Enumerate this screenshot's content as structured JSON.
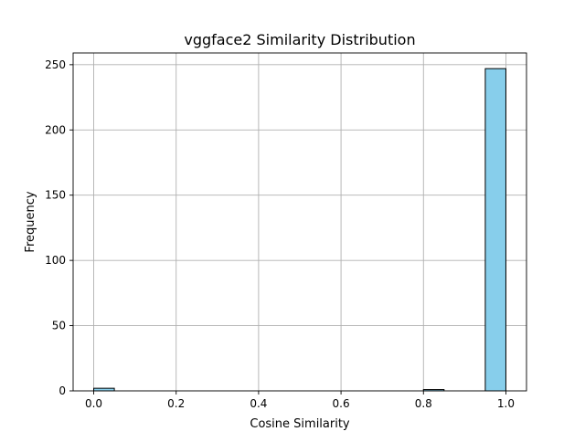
{
  "chart_data": {
    "type": "bar",
    "title": "vggface2 Similarity Distribution",
    "xlabel": "Cosine Similarity",
    "ylabel": "Frequency",
    "xlim": [
      -0.05,
      1.05
    ],
    "ylim": [
      0,
      259
    ],
    "grid": true,
    "bar_color": "#87ceeb",
    "edge_color": "#000000",
    "grid_color": "#b0b0b0",
    "bin_width": 0.05,
    "bins": [
      {
        "x0": 0.0,
        "x1": 0.05,
        "count": 2
      },
      {
        "x0": 0.05,
        "x1": 0.1,
        "count": 0
      },
      {
        "x0": 0.1,
        "x1": 0.15,
        "count": 0
      },
      {
        "x0": 0.15,
        "x1": 0.2,
        "count": 0
      },
      {
        "x0": 0.2,
        "x1": 0.25,
        "count": 0
      },
      {
        "x0": 0.25,
        "x1": 0.3,
        "count": 0
      },
      {
        "x0": 0.3,
        "x1": 0.35,
        "count": 0
      },
      {
        "x0": 0.35,
        "x1": 0.4,
        "count": 0
      },
      {
        "x0": 0.4,
        "x1": 0.45,
        "count": 0
      },
      {
        "x0": 0.45,
        "x1": 0.5,
        "count": 0
      },
      {
        "x0": 0.5,
        "x1": 0.55,
        "count": 0
      },
      {
        "x0": 0.55,
        "x1": 0.6,
        "count": 0
      },
      {
        "x0": 0.6,
        "x1": 0.65,
        "count": 0
      },
      {
        "x0": 0.65,
        "x1": 0.7,
        "count": 0
      },
      {
        "x0": 0.7,
        "x1": 0.75,
        "count": 0
      },
      {
        "x0": 0.75,
        "x1": 0.8,
        "count": 0
      },
      {
        "x0": 0.8,
        "x1": 0.85,
        "count": 1
      },
      {
        "x0": 0.85,
        "x1": 0.9,
        "count": 0
      },
      {
        "x0": 0.9,
        "x1": 0.95,
        "count": 0
      },
      {
        "x0": 0.95,
        "x1": 1.0,
        "count": 247
      }
    ],
    "x_ticks": [
      0.0,
      0.2,
      0.4,
      0.6,
      0.8,
      1.0
    ],
    "x_tick_labels": [
      "0.0",
      "0.2",
      "0.4",
      "0.6",
      "0.8",
      "1.0"
    ],
    "y_ticks": [
      0,
      50,
      100,
      150,
      200,
      250
    ],
    "y_tick_labels": [
      "0",
      "50",
      "100",
      "150",
      "200",
      "250"
    ]
  }
}
